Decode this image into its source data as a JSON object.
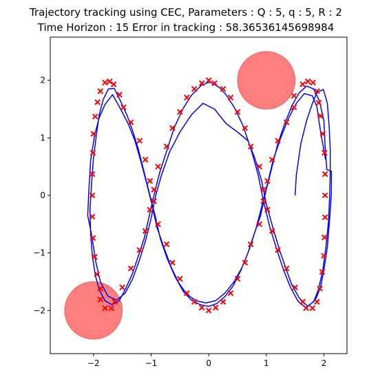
{
  "chart_data": {
    "type": "scatter",
    "title_line1": "Trajectory tracking using CEC, Parameters : Q : 5, q : 5, R : 2",
    "title_line2": "Time Horizon : 15 Error in tracking : 58.36536145698984",
    "xlim": [
      -2.75,
      2.4
    ],
    "ylim": [
      -2.75,
      2.75
    ],
    "x_ticks": [
      -2,
      -1,
      0,
      1,
      2
    ],
    "y_ticks": [
      -2,
      -1,
      0,
      1,
      2
    ],
    "x_tick_labels": [
      "−2",
      "−1",
      "0",
      "1",
      "2"
    ],
    "y_tick_labels": [
      "−2",
      "−1",
      "0",
      "1",
      "2"
    ],
    "colors": {
      "trajectory": "#0000ff",
      "reference": "#ff0000",
      "obstacle": "#ff0000"
    },
    "obstacles": [
      {
        "cx": 1.0,
        "cy": 2.0,
        "r": 0.5,
        "opacity": 0.5
      },
      {
        "cx": -2.0,
        "cy": -2.0,
        "r": 0.5,
        "opacity": 0.5
      }
    ],
    "reference_points": [
      [
        -1.8,
        -1.96
      ],
      [
        -1.69,
        -1.96
      ],
      [
        -1.63,
        -1.85
      ],
      [
        -1.5,
        -1.6
      ],
      [
        -1.35,
        -1.27
      ],
      [
        -1.2,
        -0.95
      ],
      [
        -1.1,
        -0.62
      ],
      [
        -1.02,
        -0.25
      ],
      [
        -0.95,
        0.1
      ],
      [
        -0.88,
        0.5
      ],
      [
        -0.73,
        0.85
      ],
      [
        -0.63,
        1.17
      ],
      [
        -0.5,
        1.45
      ],
      [
        -0.38,
        1.7
      ],
      [
        -0.25,
        1.85
      ],
      [
        -0.12,
        1.95
      ],
      [
        0.0,
        2.0
      ],
      [
        0.1,
        1.95
      ],
      [
        0.25,
        1.85
      ],
      [
        0.38,
        1.7
      ],
      [
        0.5,
        1.45
      ],
      [
        0.63,
        1.17
      ],
      [
        0.73,
        0.85
      ],
      [
        0.88,
        0.5
      ],
      [
        0.95,
        0.1
      ],
      [
        1.02,
        -0.25
      ],
      [
        1.1,
        -0.62
      ],
      [
        1.2,
        -0.95
      ],
      [
        1.35,
        -1.27
      ],
      [
        1.5,
        -1.6
      ],
      [
        1.63,
        -1.85
      ],
      [
        1.69,
        -1.96
      ],
      [
        1.8,
        -1.96
      ],
      [
        1.88,
        -1.85
      ],
      [
        1.93,
        -1.62
      ],
      [
        1.97,
        -1.33
      ],
      [
        2.0,
        -1.05
      ],
      [
        2.01,
        -0.73
      ],
      [
        2.02,
        -0.38
      ],
      [
        2.02,
        0.0
      ],
      [
        2.02,
        0.37
      ],
      [
        2.01,
        0.74
      ],
      [
        1.98,
        1.07
      ],
      [
        1.94,
        1.38
      ],
      [
        1.91,
        1.61
      ],
      [
        1.88,
        1.81
      ],
      [
        1.81,
        1.96
      ],
      [
        1.72,
        1.98
      ],
      [
        1.63,
        1.93
      ],
      [
        1.48,
        1.73
      ],
      [
        1.48,
        1.53
      ],
      [
        1.35,
        1.27
      ],
      [
        1.2,
        0.95
      ],
      [
        1.1,
        0.62
      ],
      [
        1.02,
        0.25
      ],
      [
        0.95,
        -0.1
      ],
      [
        0.88,
        -0.5
      ],
      [
        0.73,
        -0.85
      ],
      [
        0.63,
        -1.17
      ],
      [
        0.5,
        -1.45
      ],
      [
        0.38,
        -1.7
      ],
      [
        0.25,
        -1.85
      ],
      [
        0.12,
        -1.95
      ],
      [
        0.0,
        -2.0
      ],
      [
        -0.12,
        -1.95
      ],
      [
        -0.25,
        -1.85
      ],
      [
        -0.38,
        -1.7
      ],
      [
        -0.5,
        -1.45
      ],
      [
        -0.63,
        -1.17
      ],
      [
        -0.73,
        -0.85
      ],
      [
        -0.88,
        -0.5
      ],
      [
        -0.95,
        -0.1
      ],
      [
        -1.02,
        0.25
      ],
      [
        -1.1,
        0.62
      ],
      [
        -1.2,
        0.95
      ],
      [
        -1.35,
        1.27
      ],
      [
        -1.48,
        1.53
      ],
      [
        -1.55,
        1.75
      ],
      [
        -1.65,
        1.93
      ],
      [
        -1.72,
        1.98
      ],
      [
        -1.8,
        1.96
      ],
      [
        -1.88,
        1.81
      ],
      [
        -1.93,
        1.62
      ],
      [
        -1.97,
        1.37
      ],
      [
        -2.0,
        1.07
      ],
      [
        -2.01,
        0.74
      ],
      [
        -2.02,
        0.37
      ],
      [
        -2.02,
        0.0
      ],
      [
        -2.02,
        -0.37
      ],
      [
        -2.01,
        -0.74
      ],
      [
        -1.98,
        -1.07
      ],
      [
        -1.94,
        -1.37
      ],
      [
        -1.88,
        -1.62
      ],
      [
        -1.88,
        -1.81
      ]
    ],
    "trajectory": [
      [
        1.5,
        0.0
      ],
      [
        1.52,
        0.35
      ],
      [
        1.6,
        0.9
      ],
      [
        1.7,
        1.3
      ],
      [
        1.8,
        1.6
      ],
      [
        1.88,
        1.79
      ],
      [
        1.99,
        1.84
      ],
      [
        2.06,
        1.6
      ],
      [
        2.09,
        1.2
      ],
      [
        2.11,
        0.8
      ],
      [
        2.11,
        0.4
      ],
      [
        2.1,
        0.0
      ],
      [
        2.08,
        -0.45
      ],
      [
        2.04,
        -0.85
      ],
      [
        1.98,
        -1.3
      ],
      [
        1.9,
        -1.65
      ],
      [
        1.82,
        -1.85
      ],
      [
        1.68,
        -1.95
      ],
      [
        1.55,
        -1.84
      ],
      [
        1.42,
        -1.6
      ],
      [
        1.3,
        -1.3
      ],
      [
        1.2,
        -1.0
      ],
      [
        1.06,
        -0.55
      ],
      [
        0.95,
        -0.1
      ],
      [
        0.86,
        0.35
      ],
      [
        0.75,
        0.75
      ],
      [
        0.6,
        1.2
      ],
      [
        0.45,
        1.52
      ],
      [
        0.3,
        1.75
      ],
      [
        0.18,
        1.88
      ],
      [
        0.02,
        1.97
      ],
      [
        -0.12,
        1.92
      ],
      [
        -0.3,
        1.74
      ],
      [
        -0.45,
        1.5
      ],
      [
        -0.6,
        1.17
      ],
      [
        -0.72,
        0.8
      ],
      [
        -0.85,
        0.4
      ],
      [
        -0.95,
        0.0
      ],
      [
        -1.03,
        -0.35
      ],
      [
        -1.12,
        -0.75
      ],
      [
        -1.22,
        -1.05
      ],
      [
        -1.32,
        -1.35
      ],
      [
        -1.46,
        -1.66
      ],
      [
        -1.56,
        -1.84
      ],
      [
        -1.68,
        -1.9
      ],
      [
        -1.8,
        -1.83
      ],
      [
        -1.9,
        -1.64
      ],
      [
        -1.97,
        -1.38
      ],
      [
        -2.02,
        -1.05
      ],
      [
        -2.05,
        -0.65
      ],
      [
        -2.06,
        -0.25
      ],
      [
        -2.03,
        0.25
      ],
      [
        -2.0,
        0.65
      ],
      [
        -1.95,
        1.05
      ],
      [
        -1.9,
        1.4
      ],
      [
        -1.83,
        1.67
      ],
      [
        -1.74,
        1.85
      ],
      [
        -1.64,
        1.86
      ],
      [
        -1.55,
        1.68
      ],
      [
        -1.42,
        1.4
      ],
      [
        -1.32,
        1.12
      ],
      [
        -1.22,
        0.8
      ],
      [
        -1.12,
        0.4
      ],
      [
        -1.02,
        0.0
      ],
      [
        -0.93,
        -0.35
      ],
      [
        -0.84,
        -0.75
      ],
      [
        -0.72,
        -1.1
      ],
      [
        -0.58,
        -1.42
      ],
      [
        -0.44,
        -1.67
      ],
      [
        -0.3,
        -1.82
      ],
      [
        -0.15,
        -1.9
      ],
      [
        0.0,
        -1.93
      ],
      [
        0.14,
        -1.88
      ],
      [
        0.28,
        -1.76
      ],
      [
        0.42,
        -1.58
      ],
      [
        0.56,
        -1.3
      ],
      [
        0.68,
        -1.0
      ],
      [
        0.78,
        -0.7
      ],
      [
        0.9,
        -0.35
      ],
      [
        1.0,
        0.1
      ],
      [
        1.1,
        0.5
      ],
      [
        1.2,
        0.9
      ],
      [
        1.32,
        1.25
      ],
      [
        1.45,
        1.57
      ],
      [
        1.57,
        1.78
      ],
      [
        1.7,
        1.9
      ],
      [
        1.82,
        1.85
      ],
      [
        1.92,
        1.65
      ],
      [
        2.0,
        1.3
      ],
      [
        2.02,
        0.85
      ],
      [
        2.05,
        0.45
      ],
      [
        2.13,
        0.42
      ],
      [
        2.13,
        0.05
      ],
      [
        2.1,
        -0.4
      ],
      [
        2.06,
        -0.9
      ],
      [
        2.0,
        -1.3
      ],
      [
        1.94,
        -1.6
      ],
      [
        1.85,
        -1.82
      ],
      [
        1.72,
        -1.93
      ],
      [
        1.57,
        -1.78
      ],
      [
        1.44,
        -1.55
      ],
      [
        1.34,
        -1.27
      ],
      [
        1.23,
        -0.95
      ],
      [
        1.12,
        -0.58
      ],
      [
        1.0,
        -0.15
      ],
      [
        0.92,
        0.25
      ],
      [
        0.8,
        0.65
      ],
      [
        0.68,
        0.95
      ],
      [
        0.5,
        1.1
      ],
      [
        0.3,
        1.25
      ],
      [
        0.1,
        1.5
      ],
      [
        -0.1,
        1.6
      ],
      [
        -0.3,
        1.4
      ],
      [
        -0.5,
        1.1
      ],
      [
        -0.68,
        0.75
      ],
      [
        -0.82,
        0.35
      ],
      [
        -0.92,
        0.0
      ],
      [
        -1.0,
        -0.4
      ],
      [
        -1.1,
        -0.8
      ],
      [
        -1.2,
        -1.12
      ],
      [
        -1.32,
        -1.45
      ],
      [
        -1.45,
        -1.7
      ],
      [
        -1.6,
        -1.82
      ],
      [
        -1.75,
        -1.75
      ],
      [
        -1.88,
        -1.5
      ],
      [
        -1.96,
        -1.15
      ],
      [
        -2.03,
        -0.7
      ],
      [
        -2.1,
        -0.35
      ],
      [
        -2.08,
        0.1
      ],
      [
        -2.05,
        0.6
      ],
      [
        -1.98,
        1.05
      ],
      [
        -1.9,
        1.35
      ],
      [
        -1.8,
        1.58
      ],
      [
        -1.67,
        1.75
      ],
      [
        -1.54,
        1.52
      ],
      [
        -1.4,
        1.25
      ],
      [
        -1.28,
        0.95
      ],
      [
        -1.18,
        0.6
      ],
      [
        -1.08,
        0.22
      ],
      [
        -0.98,
        -0.18
      ],
      [
        -0.9,
        -0.55
      ],
      [
        -0.78,
        -0.9
      ],
      [
        -0.65,
        -1.25
      ],
      [
        -0.52,
        -1.52
      ],
      [
        -0.38,
        -1.72
      ],
      [
        -0.22,
        -1.83
      ],
      [
        -0.05,
        -1.87
      ],
      [
        0.12,
        -1.83
      ],
      [
        0.28,
        -1.7
      ],
      [
        0.44,
        -1.5
      ],
      [
        0.58,
        -1.25
      ],
      [
        0.7,
        -0.95
      ],
      [
        0.82,
        -0.58
      ],
      [
        0.92,
        -0.2
      ],
      [
        1.02,
        0.2
      ],
      [
        1.12,
        0.62
      ],
      [
        1.25,
        1.0
      ],
      [
        1.38,
        1.33
      ],
      [
        1.52,
        1.6
      ],
      [
        1.66,
        1.77
      ],
      [
        1.8,
        1.73
      ],
      [
        1.88,
        1.53
      ],
      [
        1.92,
        1.25
      ],
      [
        1.96,
        1.0
      ],
      [
        2.03,
        0.62
      ]
    ]
  }
}
